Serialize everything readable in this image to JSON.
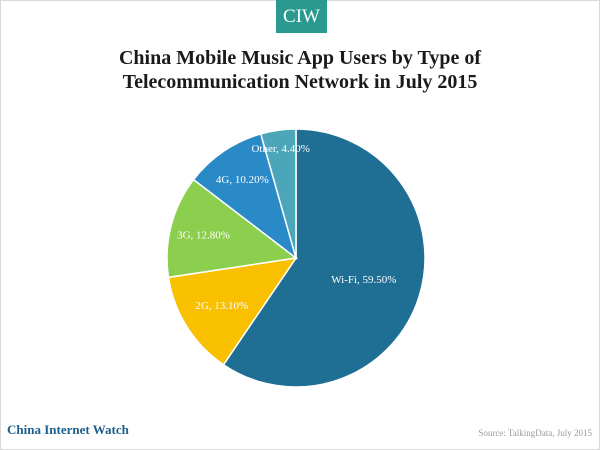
{
  "logo": {
    "text": "CIW"
  },
  "chart_data": {
    "type": "pie",
    "title_line1": "China Mobile Music App Users by Type of",
    "title_line2": "Telecommunication Network in July 2015",
    "slices": [
      {
        "label": "Wi-Fi",
        "value": 59.5,
        "display": "Wi-Fi, 59.50%",
        "color": "#1f6f94"
      },
      {
        "label": "2G",
        "value": 13.1,
        "display": "2G, 13.10%",
        "color": "#f9c000"
      },
      {
        "label": "3G",
        "value": 12.8,
        "display": "3G, 12.80%",
        "color": "#8ccf4f"
      },
      {
        "label": "4G",
        "value": 10.2,
        "display": "4G, 10.20%",
        "color": "#2a8ac8"
      },
      {
        "label": "Other",
        "value": 4.4,
        "display": "Other, 4.40%",
        "color": "#4aa6b8"
      }
    ]
  },
  "footer": {
    "brand": "China Internet Watch",
    "source": "Source: TalkingData, July 2015"
  },
  "colors": {
    "brand_teal": "#2a9a90",
    "brand_blue": "#1d5f8c"
  }
}
